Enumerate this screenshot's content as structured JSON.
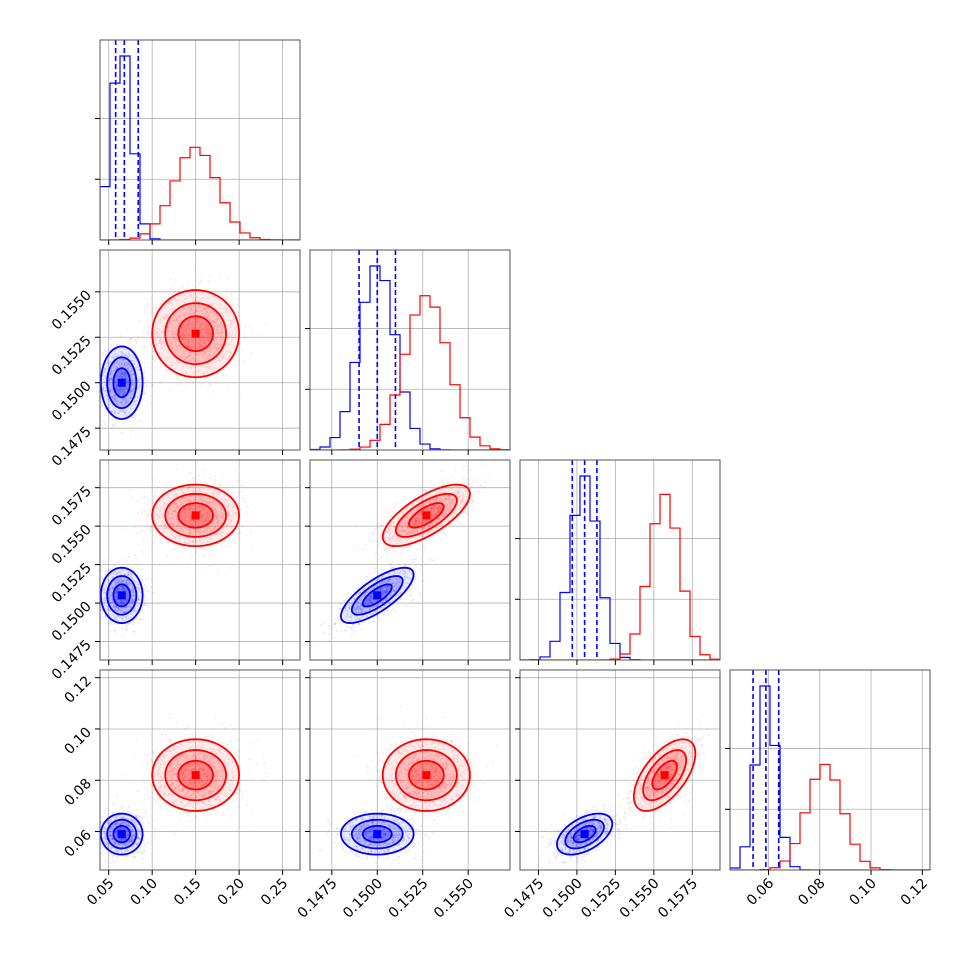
{
  "chart_data": {
    "type": "corner",
    "colors": {
      "blue": "#0000ff",
      "red": "#ff0000"
    },
    "grid": true,
    "parameters": [
      {
        "range": [
          0.04,
          0.27
        ],
        "ticks": [
          "0.05",
          "0.10",
          "0.15",
          "0.20",
          "0.25"
        ]
      },
      {
        "range": [
          0.1463,
          0.1573
        ],
        "ticks": [
          "0.1475",
          "0.1500",
          "0.1525",
          "0.1550"
        ]
      },
      {
        "range": [
          0.1463,
          0.1593
        ],
        "ticks": [
          "0.1475",
          "0.1500",
          "0.1525",
          "0.1550",
          "0.1575"
        ]
      },
      {
        "range": [
          0.045,
          0.123
        ],
        "ticks": [
          "0.06",
          "0.08",
          "0.10",
          "0.12"
        ]
      }
    ],
    "series": [
      {
        "color": "blue",
        "mean": [
          0.065,
          0.15,
          0.1505,
          0.059
        ],
        "std": [
          0.012,
          0.001,
          0.0009,
          0.004
        ],
        "corr": [
          [
            1,
            0,
            0,
            0
          ],
          [
            0,
            1,
            0.75,
            0
          ],
          [
            0,
            0.75,
            1,
            0.5
          ],
          [
            0,
            0,
            0.5,
            1
          ]
        ],
        "quantiles": [
          [
            0.058,
            0.068,
            0.084
          ],
          [
            0.149,
            0.15,
            0.151
          ],
          [
            0.1497,
            0.1505,
            0.1513
          ],
          [
            0.054,
            0.059,
            0.064
          ]
        ]
      },
      {
        "color": "red",
        "mean": [
          0.15,
          0.1527,
          0.1557,
          0.082
        ],
        "std": [
          0.025,
          0.0012,
          0.001,
          0.007
        ],
        "corr": [
          [
            1,
            0,
            0,
            0
          ],
          [
            0,
            1,
            0.7,
            0
          ],
          [
            0,
            0.7,
            1,
            0.6
          ],
          [
            0,
            0,
            0.6,
            1
          ]
        ]
      }
    ]
  }
}
